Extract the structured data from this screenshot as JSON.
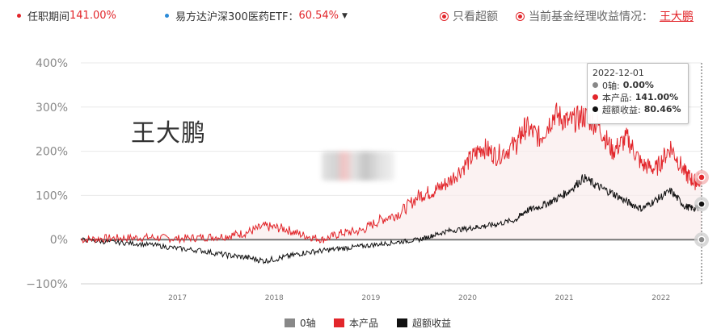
{
  "topbar": {
    "fund_label": "任职期间",
    "fund_value": "141.00%",
    "index_label": "易方达沪深300医药ETF：",
    "index_value": "60.54%",
    "excess_only": "只看超额",
    "manager_prompt": "当前基金经理收益情况：",
    "manager_name": "王大鹏"
  },
  "watermark": "王大鹏",
  "tooltip": {
    "date": "2022-12-01",
    "rows": [
      {
        "label": "0轴:",
        "value": "0.00%",
        "color": "#888888"
      },
      {
        "label": "本产品:",
        "value": "141.00%",
        "color": "#e2262b"
      },
      {
        "label": "超额收益:",
        "value": "80.46%",
        "color": "#111111"
      }
    ]
  },
  "legend": {
    "items": [
      {
        "label": "0轴",
        "color": "#888888"
      },
      {
        "label": "本产品",
        "color": "#e2262b"
      },
      {
        "label": "超额收益",
        "color": "#111111"
      }
    ]
  },
  "chart_data": {
    "type": "line",
    "ylim": [
      -100,
      400
    ],
    "yticks": [
      "400%",
      "300%",
      "200%",
      "100%",
      "0%",
      "−100%"
    ],
    "ytick_values": [
      400,
      300,
      200,
      100,
      0,
      -100
    ],
    "xticks": [
      "2017",
      "2018",
      "2019",
      "2020",
      "2021",
      "2022"
    ],
    "xtick_values": [
      2017.0,
      2018.0,
      2019.0,
      2020.0,
      2021.0,
      2022.0
    ],
    "xlim": [
      2016.5,
      2022.92
    ],
    "series": [
      {
        "name": "0轴",
        "color": "#888888",
        "x": [
          2016.5,
          2022.92
        ],
        "y": [
          0,
          0
        ]
      },
      {
        "name": "本产品",
        "color": "#e2262b",
        "x": [
          2016.5,
          2016.75,
          2017.0,
          2017.25,
          2017.5,
          2017.75,
          2018.0,
          2018.2,
          2018.4,
          2018.6,
          2018.8,
          2019.0,
          2019.2,
          2019.4,
          2019.6,
          2019.8,
          2020.0,
          2020.15,
          2020.3,
          2020.5,
          2020.65,
          2020.8,
          2021.0,
          2021.1,
          2021.25,
          2021.4,
          2021.55,
          2021.7,
          2021.85,
          2022.0,
          2022.15,
          2022.3,
          2022.45,
          2022.6,
          2022.75,
          2022.85,
          2022.92
        ],
        "y": [
          0,
          3,
          4,
          5,
          2,
          5,
          8,
          15,
          30,
          25,
          10,
          0,
          15,
          20,
          45,
          60,
          100,
          110,
          130,
          175,
          210,
          190,
          215,
          255,
          230,
          285,
          265,
          280,
          260,
          200,
          230,
          170,
          160,
          210,
          150,
          130,
          141
        ]
      },
      {
        "name": "超额收益",
        "color": "#111111",
        "x": [
          2016.5,
          2016.75,
          2017.0,
          2017.25,
          2017.5,
          2017.75,
          2018.0,
          2018.2,
          2018.4,
          2018.6,
          2018.8,
          2019.0,
          2019.2,
          2019.4,
          2019.6,
          2019.8,
          2020.0,
          2020.15,
          2020.3,
          2020.5,
          2020.65,
          2020.8,
          2021.0,
          2021.1,
          2021.25,
          2021.4,
          2021.55,
          2021.7,
          2021.85,
          2022.0,
          2022.15,
          2022.3,
          2022.45,
          2022.6,
          2022.75,
          2022.85,
          2022.92
        ],
        "y": [
          0,
          -5,
          -8,
          -12,
          -20,
          -25,
          -35,
          -40,
          -48,
          -40,
          -30,
          -25,
          -20,
          -15,
          -10,
          -5,
          0,
          10,
          20,
          25,
          30,
          35,
          45,
          65,
          75,
          90,
          110,
          140,
          120,
          105,
          85,
          70,
          90,
          110,
          75,
          70,
          80.46
        ]
      }
    ],
    "grid": true,
    "legend_position": "bottom"
  }
}
